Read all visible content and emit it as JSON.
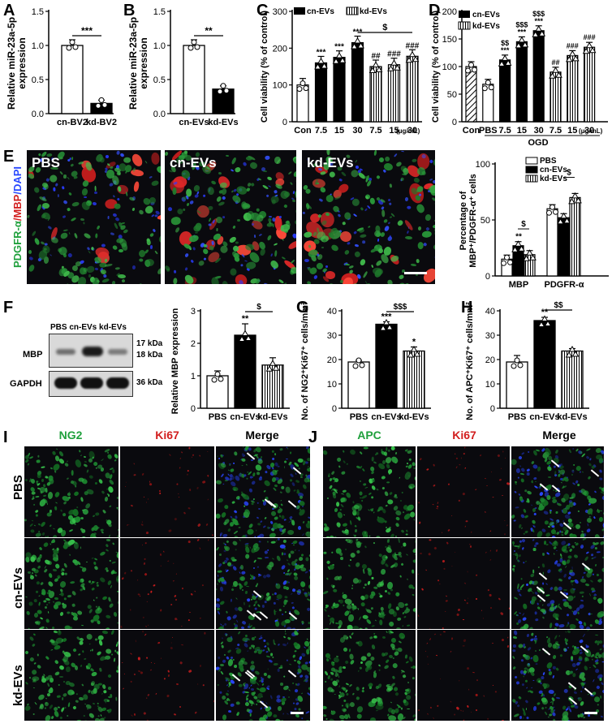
{
  "panel_letters": {
    "a": "A",
    "b": "B",
    "c": "C",
    "d": "D",
    "e": "E",
    "f": "F",
    "g": "G",
    "h": "H",
    "i": "I",
    "j": "J"
  },
  "colors": {
    "bar_black": "#000000",
    "bar_white": "#ffffff",
    "ng2_green": "#1fa03c",
    "ki67_red": "#d21e1e",
    "dapi_blue": "#2040ff",
    "scalebar": "#ffffff"
  },
  "panel_e": {
    "image_labels": [
      "PBS",
      "cn-EVs",
      "kd-EVs"
    ],
    "stain_label_green": "PDGFR-α",
    "stain_label_red": "/MBP",
    "stain_label_blue": "/DAPI"
  },
  "panel_f": {
    "blot_header": "PBS cn-EVs kd-EVs",
    "row_mbp": "MBP",
    "row_gapdh": "GAPDH",
    "kda_17": "17 kDa",
    "kda_18": "18 kDa",
    "kda_36": "36 kDa"
  },
  "panel_i": {
    "columns": [
      "NG2",
      "Ki67",
      "Merge"
    ],
    "rows": [
      "PBS",
      "cn-EVs",
      "kd-EVs"
    ]
  },
  "panel_j": {
    "columns": [
      "APC",
      "Ki67",
      "Merge"
    ]
  },
  "chart_data": [
    {
      "id": "A",
      "type": "bar",
      "ylabel_line1": "Relative miR-23a-5p",
      "ylabel_line2": "expression",
      "categories": [
        "cn-BV2",
        "kd-BV2"
      ],
      "values": [
        1.0,
        0.15
      ],
      "colors": [
        "white",
        "black"
      ],
      "ylim": [
        0,
        1.5
      ],
      "yticks": [
        "0.0",
        "0.5",
        "1.0",
        "1.5"
      ],
      "ytick_values": [
        0,
        0.5,
        1.0,
        1.5
      ],
      "sig": "***"
    },
    {
      "id": "B",
      "type": "bar",
      "ylabel_line1": "Relative miR-23a-5p",
      "ylabel_line2": "expression",
      "categories": [
        "cn-EVs",
        "kd-EVs"
      ],
      "values": [
        1.0,
        0.36
      ],
      "colors": [
        "white",
        "black"
      ],
      "ylim": [
        0,
        1.5
      ],
      "yticks": [
        "0.0",
        "0.5",
        "1.0",
        "1.5"
      ],
      "ytick_values": [
        0,
        0.5,
        1.0,
        1.5
      ],
      "sig": "**"
    },
    {
      "id": "C",
      "type": "bar",
      "ylabel": "Cell viability (% of control)",
      "legend": [
        "cn-EVs",
        "kd-EVs"
      ],
      "categories": [
        "Con",
        "7.5",
        "15",
        "30",
        "7.5",
        "15",
        "30"
      ],
      "unit": "(μg/mL)",
      "values": [
        100,
        160,
        175,
        215,
        150,
        155,
        178
      ],
      "patterns": [
        "white",
        "black",
        "black",
        "black",
        "stripe",
        "stripe",
        "stripe"
      ],
      "annotations": [
        "",
        "***",
        "***",
        "***",
        "##",
        "###",
        "###"
      ],
      "bracket": "$",
      "ylim": [
        0,
        300
      ],
      "yticks": [
        "0",
        "100",
        "200",
        "300"
      ],
      "ytick_values": [
        0,
        100,
        200,
        300
      ]
    },
    {
      "id": "D",
      "type": "bar",
      "ylabel": "Cell viability (% of control)",
      "legend": [
        "cn-EVs",
        "kd-EVs"
      ],
      "categories": [
        "Con",
        "PBS",
        "7.5",
        "15",
        "30",
        "7.5",
        "15",
        "30"
      ],
      "unit": "(μg/mL)",
      "group_label": "OGD",
      "values": [
        100,
        68,
        112,
        145,
        165,
        90,
        120,
        135
      ],
      "patterns": [
        "hatch",
        "white",
        "black",
        "black",
        "black",
        "stripe",
        "stripe",
        "stripe"
      ],
      "annotations_top": [
        "",
        "",
        "$$",
        "$$$",
        "$$$",
        "",
        "",
        ""
      ],
      "annotations": [
        "",
        "",
        "***",
        "***",
        "***",
        "##",
        "###",
        "###"
      ],
      "ylim": [
        0,
        200
      ],
      "yticks": [
        "0",
        "50",
        "100",
        "150",
        "200"
      ],
      "ytick_values": [
        0,
        50,
        100,
        150,
        200
      ]
    },
    {
      "id": "E",
      "type": "bar",
      "ylabel_line1": "Percentage of",
      "ylabel_line2": "MBP⁺/PDGFR-α⁺ cells",
      "legend": [
        "PBS",
        "cn-EVs",
        "kd-EVs"
      ],
      "categories": [
        "MBP",
        "PDGFR-α"
      ],
      "series": [
        {
          "name": "PBS",
          "values": [
            15,
            60
          ]
        },
        {
          "name": "cn-EVs",
          "values": [
            27,
            52
          ]
        },
        {
          "name": "kd-EVs",
          "values": [
            19,
            70
          ]
        }
      ],
      "annotations": [
        "**",
        "$",
        "$"
      ],
      "ylim": [
        0,
        100
      ],
      "yticks": [
        "0",
        "50",
        "100"
      ],
      "ytick_values": [
        0,
        50,
        100
      ]
    },
    {
      "id": "F",
      "type": "bar",
      "ylabel": "Relative MBP expression",
      "categories": [
        "PBS",
        "cn-EVs",
        "kd-EVs"
      ],
      "values": [
        1.0,
        2.25,
        1.33
      ],
      "patterns": [
        "white",
        "black",
        "stripe"
      ],
      "annotations": [
        "",
        "**",
        ""
      ],
      "bracket": "$",
      "ylim": [
        0,
        3
      ],
      "yticks": [
        "0",
        "1",
        "2",
        "3"
      ],
      "ytick_values": [
        0,
        1,
        2,
        3
      ]
    },
    {
      "id": "G",
      "type": "bar",
      "ylabel": "No. of NG2⁺Ki67⁺ cells/mm²",
      "categories": [
        "PBS",
        "cn-EVs",
        "kd-EVs"
      ],
      "values": [
        19,
        34.5,
        23.5
      ],
      "patterns": [
        "white",
        "black",
        "stripe"
      ],
      "annotations": [
        "",
        "***",
        "*"
      ],
      "bracket": "$$$",
      "ylim": [
        0,
        40
      ],
      "yticks": [
        "0",
        "10",
        "20",
        "30",
        "40"
      ],
      "ytick_values": [
        0,
        10,
        20,
        30,
        40
      ]
    },
    {
      "id": "H",
      "type": "bar",
      "ylabel": "No. of APC⁺Ki67⁺ cells/mm²",
      "categories": [
        "PBS",
        "cn-EVs",
        "kd-EVs"
      ],
      "values": [
        19,
        36,
        23.5
      ],
      "patterns": [
        "white",
        "black",
        "stripe"
      ],
      "annotations": [
        "",
        "**",
        ""
      ],
      "bracket": "$$",
      "ylim": [
        0,
        40
      ],
      "yticks": [
        "0",
        "10",
        "20",
        "30",
        "40"
      ],
      "ytick_values": [
        0,
        10,
        20,
        30,
        40
      ]
    }
  ]
}
